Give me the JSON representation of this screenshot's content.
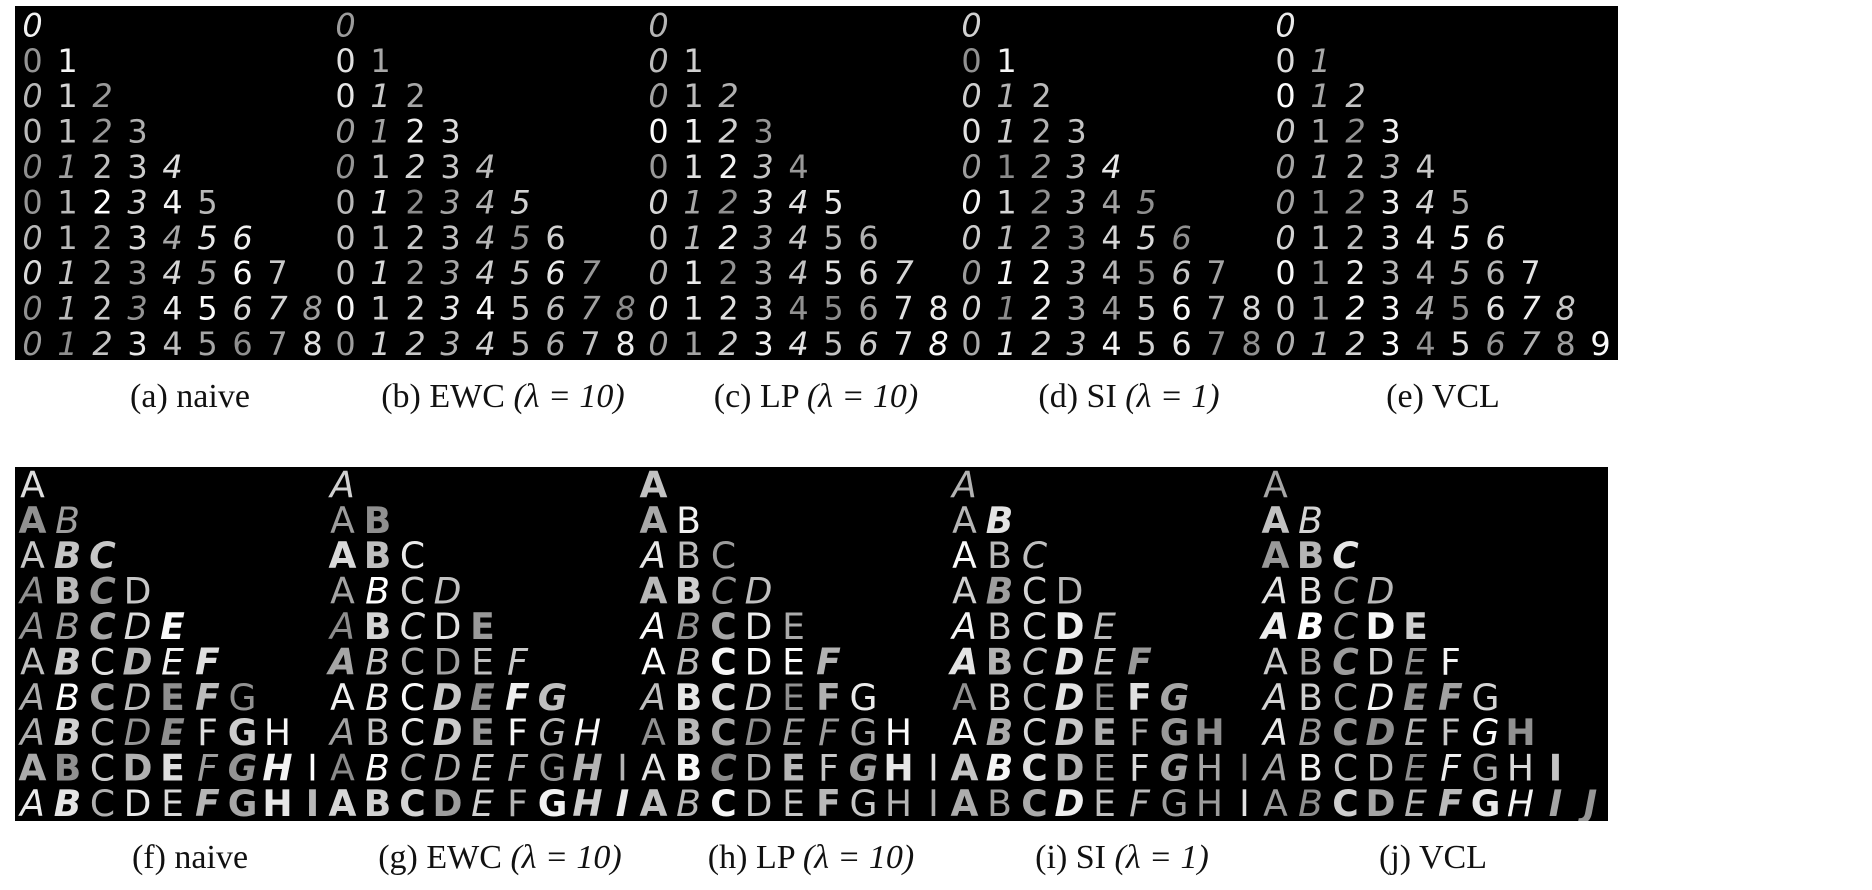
{
  "row_top": {
    "panels": [
      {
        "tag": "(a)",
        "name": "naive",
        "param": ""
      },
      {
        "tag": "(b)",
        "name": "EWC",
        "param": "(λ = 10)"
      },
      {
        "tag": "(c)",
        "name": "LP",
        "param": "(λ = 10)"
      },
      {
        "tag": "(d)",
        "name": "SI",
        "param": "(λ = 1)"
      },
      {
        "tag": "(e)",
        "name": "VCL",
        "param": ""
      }
    ],
    "glyphs": [
      "0",
      "1",
      "2",
      "3",
      "4",
      "5",
      "6",
      "7",
      "8",
      "9"
    ]
  },
  "row_bottom": {
    "panels": [
      {
        "tag": "(f)",
        "name": "naive",
        "param": ""
      },
      {
        "tag": "(g)",
        "name": "EWC",
        "param": "(λ = 10)"
      },
      {
        "tag": "(h)",
        "name": "LP",
        "param": "(λ = 10)"
      },
      {
        "tag": "(i)",
        "name": "SI",
        "param": "(λ = 1)"
      },
      {
        "tag": "(j)",
        "name": "VCL",
        "param": ""
      }
    ],
    "glyphs": [
      "A",
      "B",
      "C",
      "D",
      "E",
      "F",
      "G",
      "H",
      "I",
      "J"
    ]
  },
  "colors": {
    "background": "#000000",
    "glyph": "#ffffff",
    "caption": "#111111"
  }
}
